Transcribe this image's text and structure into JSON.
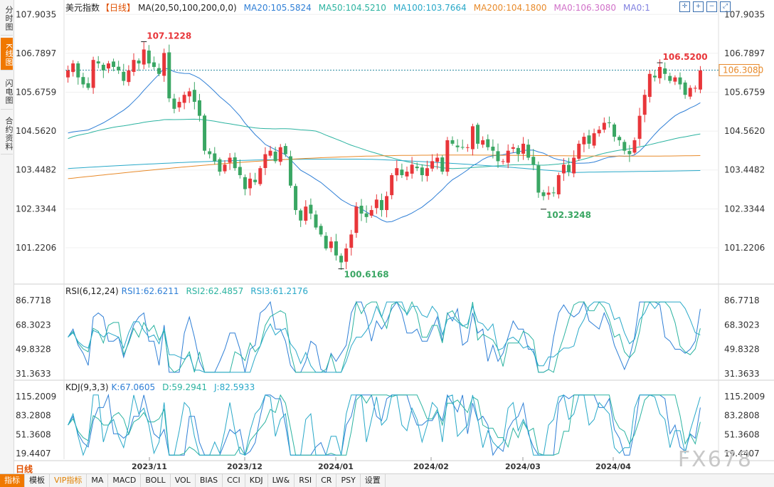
{
  "sidebar": {
    "tabs": [
      {
        "label": "分时图",
        "active": false
      },
      {
        "label": "K线图",
        "active": true
      },
      {
        "label": "闪电图",
        "active": false
      },
      {
        "label": "合约资料",
        "active": false
      }
    ]
  },
  "header": {
    "symbol": "美元指数",
    "period": "【日线】",
    "ma_label": "MA(20,50,100,200,0,0)",
    "ma_values": [
      {
        "text": "MA20:105.5824",
        "color": "#2f7fd6"
      },
      {
        "text": "MA50:104.5210",
        "color": "#2bb3a0"
      },
      {
        "text": "MA100:103.7664",
        "color": "#28a8c8"
      },
      {
        "text": "MA200:104.1800",
        "color": "#e88a2a"
      },
      {
        "text": "MA0:106.3080",
        "color": "#d070c8"
      },
      {
        "text": "MA0:1",
        "color": "#8080e0"
      }
    ]
  },
  "rsi_legend": {
    "label": "RSI(6,12,24)",
    "values": [
      {
        "text": "RSI1:62.6211",
        "color": "#2f7fd6"
      },
      {
        "text": "RSI2:62.4857",
        "color": "#2bb3a0"
      },
      {
        "text": "RSI3:61.2176",
        "color": "#28a8c8"
      }
    ]
  },
  "kdj_legend": {
    "label": "KDJ(9,3,3)",
    "values": [
      {
        "text": "K:67.0605",
        "color": "#2f7fd6"
      },
      {
        "text": "D:59.2941",
        "color": "#2bb3a0"
      },
      {
        "text": "J:82.5933",
        "color": "#28a8c8"
      }
    ]
  },
  "bottom_tabs": [
    {
      "label": "指标",
      "active": true
    },
    {
      "label": "模板"
    },
    {
      "label": "VIP指标",
      "vip": true
    },
    {
      "label": "MA"
    },
    {
      "label": "MACD"
    },
    {
      "label": "BOLL"
    },
    {
      "label": "VOL"
    },
    {
      "label": "BIAS"
    },
    {
      "label": "CCI"
    },
    {
      "label": "KDJ"
    },
    {
      "label": "LW&"
    },
    {
      "label": "RSI"
    },
    {
      "label": "CR"
    },
    {
      "label": "PSY"
    },
    {
      "label": "设置"
    }
  ],
  "period_label": "日线",
  "watermark": "FX678",
  "colors": {
    "up": "#e8363a",
    "down": "#3aa663",
    "ma20": "#2f7fd6",
    "ma50": "#2bb3a0",
    "ma100": "#28a8c8",
    "ma200": "#e88a2a",
    "price_line": "#2a8aa0"
  },
  "chart_data": {
    "type": "candlestick",
    "price_axis": {
      "ticks": [
        "107.9035",
        "106.7897",
        "105.6759",
        "104.5620",
        "103.4482",
        "102.3344",
        "101.2206"
      ],
      "ylim": [
        100.2,
        107.95
      ]
    },
    "rsi_axis": {
      "ticks": [
        "86.7718",
        "68.3023",
        "49.8328",
        "31.3633"
      ]
    },
    "kdj_axis": {
      "ticks": [
        "115.2009",
        "83.2808",
        "51.3608",
        "19.4407"
      ]
    },
    "x_ticks": [
      "2023/11",
      "2023/12",
      "2024/01",
      "2024/02",
      "2024/03",
      "2024/04"
    ],
    "current_price": "106.3080",
    "annotations": [
      {
        "text": "107.1228",
        "value": 107.1228,
        "type": "high"
      },
      {
        "text": "100.6168",
        "value": 100.6168,
        "type": "low"
      },
      {
        "text": "102.3248",
        "value": 102.3248,
        "type": "low"
      },
      {
        "text": "106.5200",
        "value": 106.52,
        "type": "high"
      }
    ],
    "close_series": [
      106.3,
      106.5,
      106.1,
      105.9,
      105.8,
      106.6,
      106.5,
      106.3,
      106.5,
      106.4,
      106.3,
      106.0,
      106.3,
      106.6,
      106.5,
      106.9,
      106.5,
      106.4,
      106.2,
      106.8,
      105.5,
      105.2,
      105.4,
      105.6,
      105.7,
      105.4,
      105.0,
      104.0,
      103.9,
      103.7,
      103.4,
      103.6,
      103.8,
      103.5,
      103.3,
      102.9,
      103.2,
      103.1,
      103.5,
      103.9,
      104.0,
      103.7,
      104.1,
      103.9,
      103.0,
      102.3,
      102.0,
      102.4,
      102.2,
      101.8,
      101.6,
      101.2,
      101.4,
      101.0,
      100.8,
      101.2,
      101.6,
      102.4,
      102.2,
      102.1,
      102.3,
      102.6,
      102.3,
      102.7,
      103.3,
      103.5,
      103.3,
      103.4,
      103.6,
      103.5,
      103.3,
      103.5,
      103.7,
      103.8,
      103.4,
      104.3,
      104.2,
      104.1,
      104.1,
      104.1,
      104.7,
      104.2,
      104.3,
      104.1,
      104.0,
      103.7,
      103.7,
      104.0,
      104.1,
      103.9,
      104.2,
      103.8,
      103.6,
      102.8,
      102.7,
      102.8,
      102.8,
      103.3,
      103.6,
      103.4,
      103.8,
      104.2,
      104.4,
      104.2,
      104.5,
      104.6,
      104.8,
      104.8,
      104.4,
      104.3,
      104.0,
      103.9,
      104.3,
      105.0,
      105.6,
      106.2,
      106.1,
      106.4,
      106.2,
      106.0,
      106.1,
      105.9,
      105.6,
      105.8,
      105.8,
      106.3
    ]
  }
}
